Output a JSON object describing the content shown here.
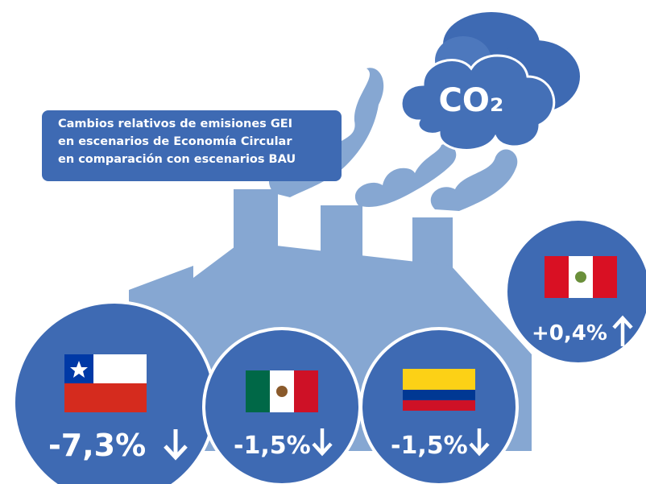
{
  "title_lines": [
    "Cambios relativos de emisiones GEI",
    "en escenarios de Economía Circular",
    "en comparación con escenarios BAU"
  ],
  "co2_label": "CO₂",
  "items": [
    {
      "value_label": "-7,3%"
    },
    {
      "value_label": "-1,5%"
    },
    {
      "value_label": "-1,5%"
    },
    {
      "value_label": "+0,4%"
    }
  ]
}
